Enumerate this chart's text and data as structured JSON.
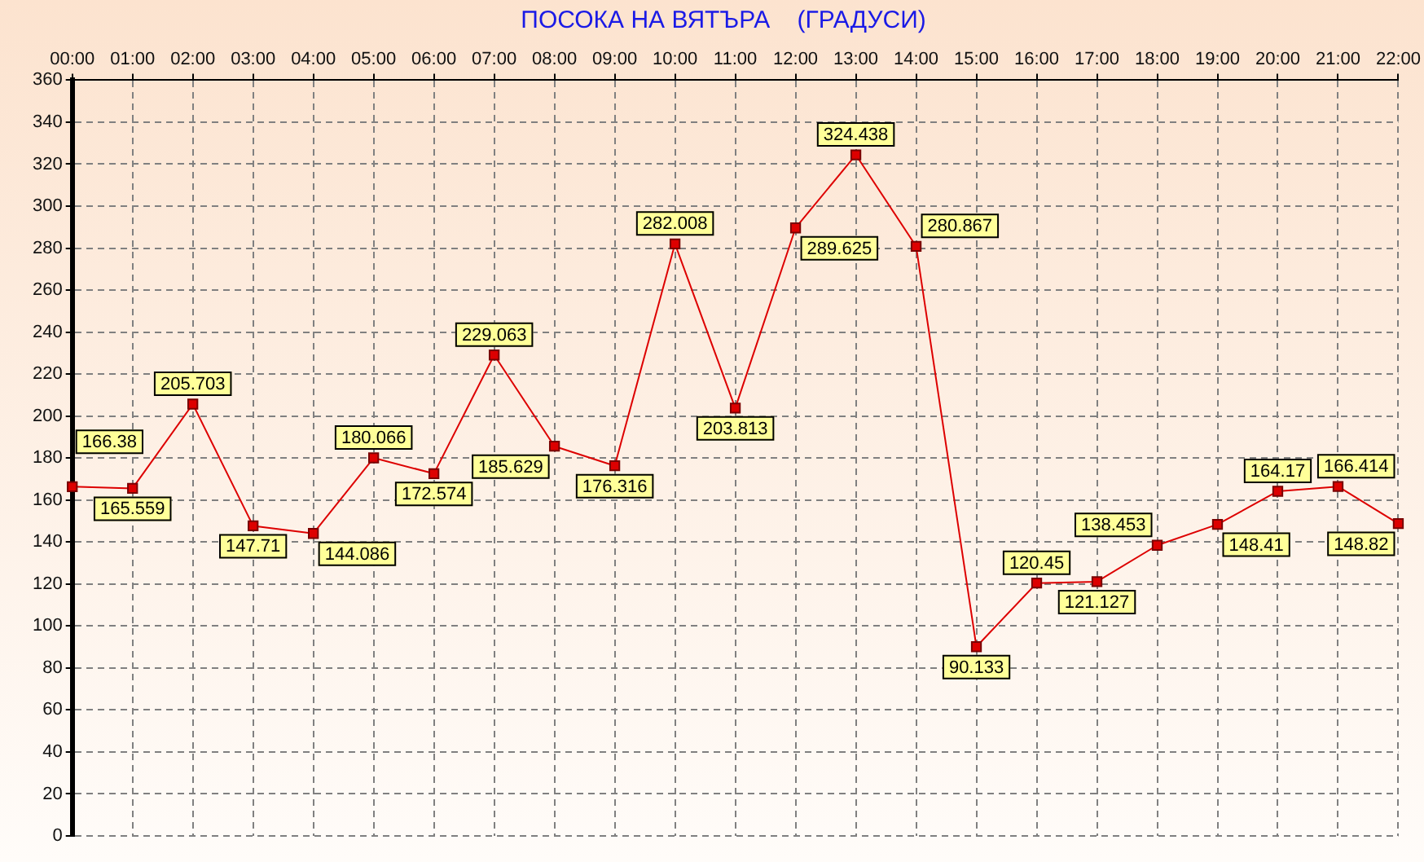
{
  "chart_data": {
    "type": "line",
    "title": "ПОСОКА НА ВЯТЪРА    (ГРАДУСИ)",
    "categories": [
      "00:00",
      "01:00",
      "02:00",
      "03:00",
      "04:00",
      "05:00",
      "06:00",
      "07:00",
      "08:00",
      "09:00",
      "10:00",
      "11:00",
      "12:00",
      "13:00",
      "14:00",
      "15:00",
      "16:00",
      "17:00",
      "18:00",
      "19:00",
      "20:00",
      "21:00",
      "22:00"
    ],
    "series": [
      {
        "color": "#dd0000",
        "values": [
          166.38,
          165.559,
          205.703,
          147.71,
          144.086,
          180.066,
          172.574,
          229.063,
          185.629,
          176.316,
          282.008,
          203.813,
          289.625,
          324.438,
          280.867,
          90.133,
          120.45,
          121.127,
          138.453,
          148.41,
          164.17,
          166.414,
          148.82
        ]
      }
    ],
    "ylim": [
      0,
      360
    ],
    "yticks": [
      0,
      20,
      40,
      60,
      80,
      100,
      120,
      140,
      160,
      180,
      200,
      220,
      240,
      260,
      280,
      300,
      320,
      340,
      360
    ],
    "grid": true,
    "marker": "square",
    "line_style": "solid",
    "data_labels": true
  }
}
